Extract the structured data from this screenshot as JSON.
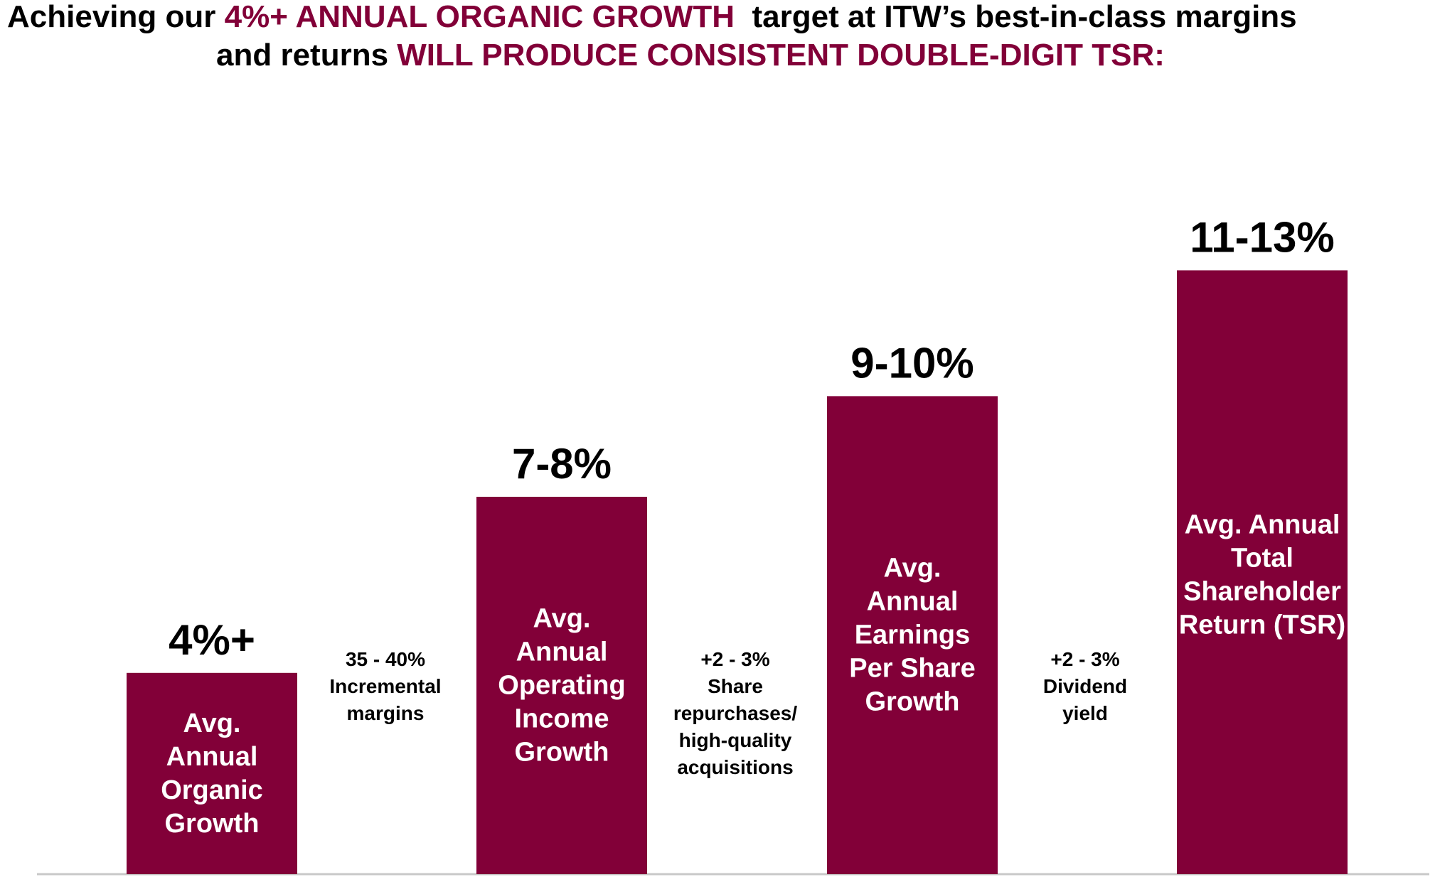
{
  "headline": {
    "line1_pre": "Achieving our ",
    "line1_accent": "4%+ ANNUAL ORGANIC GROWTH",
    "line1_post": "  target at ITW’s best-in-class margins",
    "line2_pre": "and returns ",
    "line2_accent": "WILL PRODUCE CONSISTENT DOUBLE-DIGIT TSR:"
  },
  "colors": {
    "accent": "#820038",
    "bar": "#820038",
    "baseline": "#c8c8c8"
  },
  "chart_data": {
    "type": "bar",
    "title": "",
    "xlabel": "",
    "ylabel": "",
    "ylim": [
      0,
      13
    ],
    "grid": false,
    "categories": [
      "Avg. Annual Organic Growth",
      "Avg. Annual Operating Income Growth",
      "Avg. Annual Earnings Per Share Growth",
      "Avg. Annual Total Shareholder Return (TSR)"
    ],
    "bar_label_lines": [
      [
        "Avg.",
        "Annual",
        "Organic",
        "Growth"
      ],
      [
        "Avg.",
        "Annual",
        "Operating",
        "Income",
        "Growth"
      ],
      [
        "Avg.",
        "Annual",
        "Earnings",
        "Per Share",
        "Growth"
      ],
      [
        "Avg. Annual",
        "Total",
        "Shareholder",
        "Return (TSR)"
      ]
    ],
    "values": [
      4,
      7.5,
      9.5,
      12
    ],
    "value_labels": [
      "4%+",
      "7-8%",
      "9-10%",
      "11-13%"
    ],
    "steps": [
      {
        "lines": [
          "35 - 40%",
          "Incremental",
          "margins"
        ]
      },
      {
        "lines": [
          "+2 - 3%",
          "Share",
          "repurchases/",
          "high-quality",
          "acquisitions"
        ]
      },
      {
        "lines": [
          "+2 - 3%",
          "Dividend",
          "yield"
        ]
      }
    ]
  }
}
